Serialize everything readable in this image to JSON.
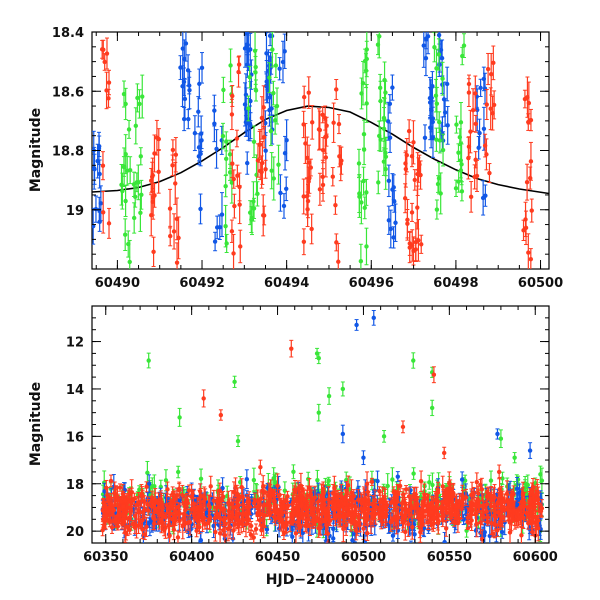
{
  "colors": {
    "red": "#ff3b1f",
    "green": "#39e639",
    "blue": "#1157e6",
    "model": "#000000"
  },
  "chart_data": [
    {
      "type": "scatter",
      "title": "",
      "xlabel": "",
      "ylabel": "Magnitude",
      "xlim": [
        60489.4,
        60500.2
      ],
      "ylim": [
        19.2,
        18.4
      ],
      "y_inverted": true,
      "x_ticks": [
        60490,
        60492,
        60494,
        60496,
        60498,
        60500
      ],
      "x_tick_labels": [
        "60490",
        "60492",
        "60494",
        "60496",
        "60498",
        "60500"
      ],
      "y_ticks": [
        18.4,
        18.6,
        18.8,
        19.0
      ],
      "y_tick_labels": [
        "18.4",
        "18.6",
        "18.8",
        "19"
      ],
      "grid": false,
      "model_curve": {
        "x": [
          60489.4,
          60490,
          60490.5,
          60491,
          60491.5,
          60492,
          60492.5,
          60493,
          60493.5,
          60494,
          60494.5,
          60495,
          60495.5,
          60496,
          60496.5,
          60497,
          60497.5,
          60498,
          60498.5,
          60499,
          60499.5,
          60500.2
        ],
        "y": [
          18.94,
          18.935,
          18.925,
          18.905,
          18.875,
          18.835,
          18.79,
          18.74,
          18.695,
          18.665,
          18.65,
          18.655,
          18.67,
          18.705,
          18.745,
          18.79,
          18.83,
          18.865,
          18.895,
          18.915,
          18.93,
          18.945
        ]
      },
      "series": [
        {
          "color": "blue",
          "clusters": [
            {
              "x": 60489.5,
              "ymin": 18.72,
              "ymax": 19.1,
              "n": 12
            },
            {
              "x": 60491.6,
              "ymin": 18.4,
              "ymax": 18.82,
              "n": 12
            },
            {
              "x": 60491.9,
              "ymin": 18.4,
              "ymax": 19.0,
              "n": 10
            },
            {
              "x": 60492.4,
              "ymin": 18.5,
              "ymax": 19.15,
              "n": 8
            },
            {
              "x": 60493.1,
              "ymin": 18.4,
              "ymax": 18.85,
              "n": 18
            },
            {
              "x": 60493.55,
              "ymin": 18.4,
              "ymax": 18.82,
              "n": 16
            },
            {
              "x": 60493.9,
              "ymin": 18.45,
              "ymax": 19.05,
              "n": 8
            },
            {
              "x": 60496.5,
              "ymin": 18.55,
              "ymax": 19.15,
              "n": 12
            },
            {
              "x": 60497.35,
              "ymin": 18.4,
              "ymax": 18.85,
              "n": 16
            },
            {
              "x": 60497.7,
              "ymin": 18.4,
              "ymax": 18.8,
              "n": 14
            },
            {
              "x": 60498.6,
              "ymin": 18.55,
              "ymax": 19.05,
              "n": 10
            }
          ]
        },
        {
          "color": "green",
          "clusters": [
            {
              "x": 60490.2,
              "ymin": 18.55,
              "ymax": 19.2,
              "n": 14
            },
            {
              "x": 60490.5,
              "ymin": 18.5,
              "ymax": 19.05,
              "n": 12
            },
            {
              "x": 60492.6,
              "ymin": 18.5,
              "ymax": 19.2,
              "n": 12
            },
            {
              "x": 60493.2,
              "ymin": 18.45,
              "ymax": 19.1,
              "n": 14
            },
            {
              "x": 60493.7,
              "ymin": 18.4,
              "ymax": 18.9,
              "n": 10
            },
            {
              "x": 60495.8,
              "ymin": 18.45,
              "ymax": 19.2,
              "n": 18
            },
            {
              "x": 60496.25,
              "ymin": 18.4,
              "ymax": 18.95,
              "n": 16
            },
            {
              "x": 60497.6,
              "ymin": 18.45,
              "ymax": 19.1,
              "n": 14
            },
            {
              "x": 60498.1,
              "ymin": 18.4,
              "ymax": 19.0,
              "n": 12
            }
          ]
        },
        {
          "color": "red",
          "clusters": [
            {
              "x": 60489.75,
              "ymin": 18.45,
              "ymax": 19.15,
              "n": 10
            },
            {
              "x": 60490.9,
              "ymin": 18.65,
              "ymax": 19.2,
              "n": 12
            },
            {
              "x": 60491.35,
              "ymin": 18.7,
              "ymax": 19.2,
              "n": 10
            },
            {
              "x": 60492.8,
              "ymin": 18.5,
              "ymax": 19.15,
              "n": 14
            },
            {
              "x": 60493.4,
              "ymin": 18.55,
              "ymax": 19.05,
              "n": 12
            },
            {
              "x": 60494.5,
              "ymin": 18.6,
              "ymax": 19.15,
              "n": 16
            },
            {
              "x": 60494.85,
              "ymin": 18.6,
              "ymax": 18.95,
              "n": 12
            },
            {
              "x": 60495.2,
              "ymin": 18.55,
              "ymax": 19.2,
              "n": 10
            },
            {
              "x": 60496.9,
              "ymin": 18.6,
              "ymax": 19.2,
              "n": 14
            },
            {
              "x": 60497.1,
              "ymin": 18.7,
              "ymax": 19.15,
              "n": 10
            },
            {
              "x": 60498.4,
              "ymin": 18.55,
              "ymax": 19.0,
              "n": 12
            },
            {
              "x": 60498.8,
              "ymin": 18.5,
              "ymax": 19.05,
              "n": 10
            },
            {
              "x": 60499.7,
              "ymin": 18.6,
              "ymax": 19.2,
              "n": 14
            }
          ]
        }
      ]
    },
    {
      "type": "scatter",
      "title": "",
      "xlabel": "HJD−2400000",
      "ylabel": "Magnitude",
      "xlim": [
        60342,
        60608
      ],
      "ylim": [
        20.5,
        10.5
      ],
      "y_inverted": true,
      "x_ticks": [
        60350,
        60400,
        60450,
        60500,
        60550,
        60600
      ],
      "x_tick_labels": [
        "60350",
        "60400",
        "60450",
        "60500",
        "60550",
        "60600"
      ],
      "y_ticks": [
        12,
        14,
        16,
        18,
        20
      ],
      "y_tick_labels": [
        "12",
        "14",
        "16",
        "18",
        "20"
      ],
      "grid": false,
      "baseline": {
        "x_start": 60348,
        "x_end": 60604,
        "mag_center": 19.1,
        "mag_spread": 1.0
      },
      "outliers": [
        {
          "color": "blue",
          "x": 60496,
          "y": 11.3
        },
        {
          "color": "blue",
          "x": 60506,
          "y": 11.0
        },
        {
          "color": "green",
          "x": 60375,
          "y": 12.8
        },
        {
          "color": "green",
          "x": 60473,
          "y": 12.5
        },
        {
          "color": "green",
          "x": 60474,
          "y": 12.7
        },
        {
          "color": "green",
          "x": 60529,
          "y": 12.8
        },
        {
          "color": "green",
          "x": 60540,
          "y": 13.3
        },
        {
          "color": "green",
          "x": 60425,
          "y": 13.7
        },
        {
          "color": "green",
          "x": 60488,
          "y": 14.0
        },
        {
          "color": "green",
          "x": 60480,
          "y": 14.3
        },
        {
          "color": "green",
          "x": 60393,
          "y": 15.2
        },
        {
          "color": "green",
          "x": 60474,
          "y": 15.0
        },
        {
          "color": "green",
          "x": 60540,
          "y": 14.8
        },
        {
          "color": "green",
          "x": 60427,
          "y": 16.2
        },
        {
          "color": "green",
          "x": 60512,
          "y": 16.0
        },
        {
          "color": "green",
          "x": 60580,
          "y": 16.1
        },
        {
          "color": "green",
          "x": 60588,
          "y": 16.9
        },
        {
          "color": "green",
          "x": 60603,
          "y": 17.6
        },
        {
          "color": "red",
          "x": 60458,
          "y": 12.3
        },
        {
          "color": "red",
          "x": 60541,
          "y": 13.4
        },
        {
          "color": "red",
          "x": 60407,
          "y": 14.4
        },
        {
          "color": "red",
          "x": 60417,
          "y": 15.1
        },
        {
          "color": "red",
          "x": 60523,
          "y": 15.6
        },
        {
          "color": "red",
          "x": 60547,
          "y": 16.7
        },
        {
          "color": "red",
          "x": 60440,
          "y": 17.3
        },
        {
          "color": "red",
          "x": 60579,
          "y": 17.5
        },
        {
          "color": "blue",
          "x": 60488,
          "y": 15.9
        },
        {
          "color": "blue",
          "x": 60578,
          "y": 15.9
        },
        {
          "color": "blue",
          "x": 60597,
          "y": 16.6
        },
        {
          "color": "blue",
          "x": 60500,
          "y": 16.9
        },
        {
          "color": "blue",
          "x": 60520,
          "y": 17.7
        }
      ]
    }
  ]
}
